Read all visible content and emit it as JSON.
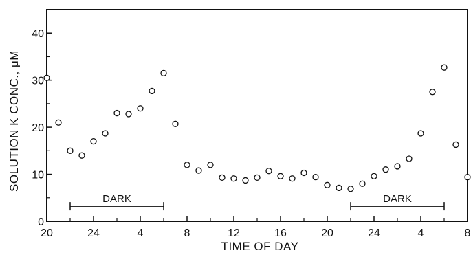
{
  "chart_data": {
    "type": "scatter",
    "title": "",
    "xlabel": "TIME OF DAY",
    "ylabel": "SOLUTION K CONC., μM",
    "x_tick_labels": [
      "20",
      "24",
      "4",
      "8",
      "12",
      "16",
      "20",
      "24",
      "4",
      "8"
    ],
    "y_ticks": [
      0,
      10,
      20,
      30,
      40
    ],
    "ylim": [
      0,
      45
    ],
    "xlim_hours_elapsed": [
      0,
      36
    ],
    "marker": "open-circle",
    "grid": false,
    "series": [
      {
        "points": [
          {
            "x": "20",
            "y": 30.5
          },
          {
            "x": "21",
            "y": 21
          },
          {
            "x": "22",
            "y": 15
          },
          {
            "x": "23",
            "y": 14
          },
          {
            "x": "24",
            "y": 17
          },
          {
            "x": "1",
            "y": 18.7
          },
          {
            "x": "2",
            "y": 23
          },
          {
            "x": "3",
            "y": 22.8
          },
          {
            "x": "4",
            "y": 24
          },
          {
            "x": "5",
            "y": 27.7
          },
          {
            "x": "6",
            "y": 31.5
          },
          {
            "x": "7",
            "y": 20.7
          },
          {
            "x": "8",
            "y": 12
          },
          {
            "x": "9",
            "y": 10.8
          },
          {
            "x": "10",
            "y": 12
          },
          {
            "x": "11",
            "y": 9.3
          },
          {
            "x": "12",
            "y": 9.1
          },
          {
            "x": "13",
            "y": 8.7
          },
          {
            "x": "14",
            "y": 9.3
          },
          {
            "x": "15",
            "y": 10.7
          },
          {
            "x": "16",
            "y": 9.6
          },
          {
            "x": "17",
            "y": 9.1
          },
          {
            "x": "18",
            "y": 10.3
          },
          {
            "x": "19",
            "y": 9.4
          },
          {
            "x": "20",
            "y": 7.7
          },
          {
            "x": "21",
            "y": 7.1
          },
          {
            "x": "22",
            "y": 6.9
          },
          {
            "x": "23",
            "y": 8
          },
          {
            "x": "24",
            "y": 9.6
          },
          {
            "x": "1",
            "y": 11
          },
          {
            "x": "2",
            "y": 11.7
          },
          {
            "x": "3",
            "y": 13.3
          },
          {
            "x": "4",
            "y": 18.7
          },
          {
            "x": "5",
            "y": 27.5
          },
          {
            "x": "6",
            "y": 32.7
          },
          {
            "x": "7",
            "y": 16.3
          },
          {
            "x": "8",
            "y": 9.4
          }
        ]
      }
    ],
    "annotations": [
      {
        "label": "DARK",
        "from": "22",
        "to": "6",
        "y": 3.2
      },
      {
        "label": "DARK",
        "from": "22",
        "to": "6",
        "y": 3.2
      }
    ]
  }
}
